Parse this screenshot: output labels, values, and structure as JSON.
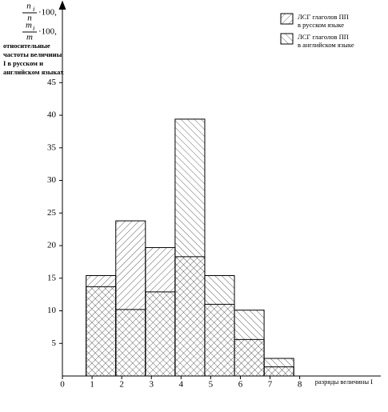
{
  "chart_data": {
    "type": "histogram",
    "ylabel_fractions": [
      {
        "num": "n",
        "sub": "i",
        "den": "n",
        "suffix": "·100,"
      },
      {
        "num": "m",
        "sub": "i",
        "den": "m",
        "suffix": "·100,"
      }
    ],
    "ylabel_lines": [
      "относительные",
      "частоты величины",
      "I в русском и",
      "английском языках"
    ],
    "xlabel": "разряды величины I",
    "bins": [
      0.8,
      1.8,
      2.8,
      3.8,
      4.8,
      5.8,
      6.8,
      7.8
    ],
    "series": [
      {
        "name": "ЛСГ глаголов ПП в русском языке",
        "color": "#000000",
        "hatch": "/",
        "values": [
          15.4,
          23.8,
          19.7,
          18.3,
          11.0,
          5.6,
          1.4
        ]
      },
      {
        "name": "ЛСГ глаголов ПП в английском языке",
        "color": "#000000",
        "hatch": "\\",
        "values": [
          13.7,
          10.2,
          12.9,
          39.4,
          15.4,
          10.1,
          2.7
        ]
      }
    ],
    "xlim": [
      0,
      10.6
    ],
    "xticks": [
      0,
      1,
      2,
      3,
      4,
      5,
      6,
      7,
      8
    ],
    "ylim": [
      0,
      57
    ],
    "yticks": [
      5,
      10,
      15,
      20,
      25,
      30,
      35,
      40,
      45
    ]
  }
}
